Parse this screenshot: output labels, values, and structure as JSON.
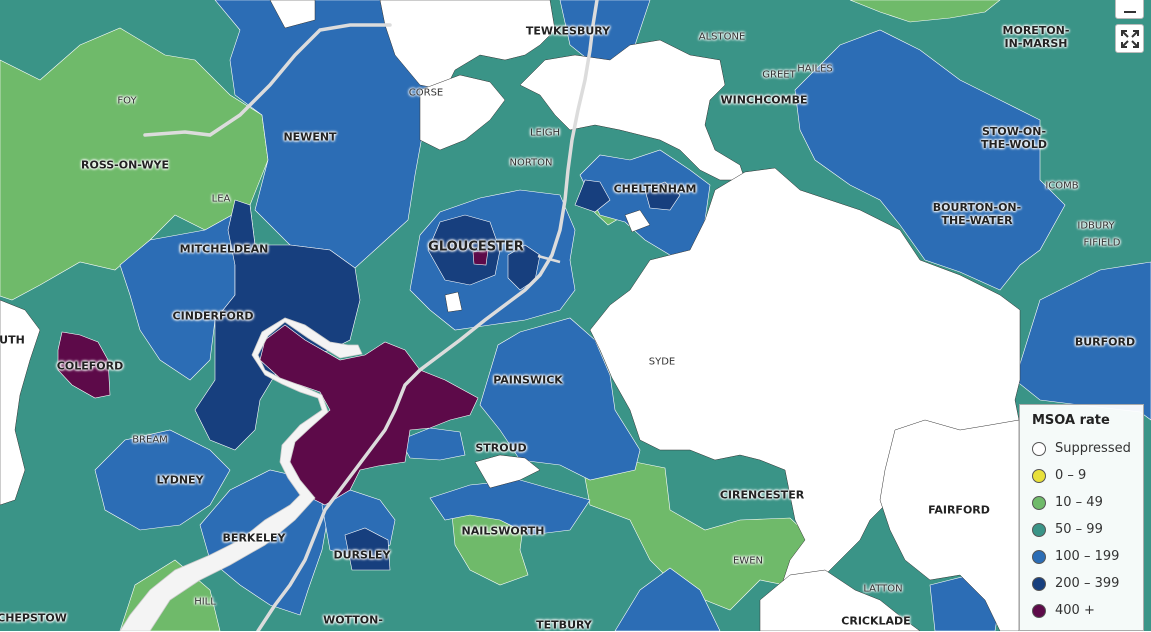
{
  "map": {
    "places": [
      {
        "label": "TEWKESBURY",
        "tier": "normal"
      },
      {
        "label": "ALSTONE",
        "tier": "minor"
      },
      {
        "label": "MORETON-\nIN-MARSH",
        "tier": "normal"
      },
      {
        "label": "FOY",
        "tier": "minor"
      },
      {
        "label": "CORSE",
        "tier": "minor"
      },
      {
        "label": "GREET",
        "tier": "minor"
      },
      {
        "label": "HAILES",
        "tier": "minor"
      },
      {
        "label": "WINCHCOMBE",
        "tier": "normal"
      },
      {
        "label": "NEWENT",
        "tier": "normal"
      },
      {
        "label": "LEIGH",
        "tier": "minor"
      },
      {
        "label": "STOW-ON-\nTHE-WOLD",
        "tier": "normal"
      },
      {
        "label": "ROSS-ON-WYE",
        "tier": "normal"
      },
      {
        "label": "NORTON",
        "tier": "minor"
      },
      {
        "label": "CHELTENHAM",
        "tier": "normal"
      },
      {
        "label": "ICOMB",
        "tier": "minor"
      },
      {
        "label": "LEA",
        "tier": "minor"
      },
      {
        "label": "BOURTON-ON-\nTHE-WATER",
        "tier": "normal"
      },
      {
        "label": "IDBURY",
        "tier": "minor"
      },
      {
        "label": "FIFIELD",
        "tier": "minor"
      },
      {
        "label": "GLOUCESTER",
        "tier": "major"
      },
      {
        "label": "MITCHELDEAN",
        "tier": "normal"
      },
      {
        "label": "CINDERFORD",
        "tier": "normal"
      },
      {
        "label": "UTH",
        "tier": "normal"
      },
      {
        "label": "BURFORD",
        "tier": "normal"
      },
      {
        "label": "SYDE",
        "tier": "minor"
      },
      {
        "label": "COLEFORD",
        "tier": "normal"
      },
      {
        "label": "PAINSWICK",
        "tier": "normal"
      },
      {
        "label": "BREAM",
        "tier": "minor"
      },
      {
        "label": "STROUD",
        "tier": "normal"
      },
      {
        "label": "LYDNEY",
        "tier": "normal"
      },
      {
        "label": "CIRENCESTER",
        "tier": "normal"
      },
      {
        "label": "FAIRFORD",
        "tier": "normal"
      },
      {
        "label": "NAILSWORTH",
        "tier": "normal"
      },
      {
        "label": "BERKELEY",
        "tier": "normal"
      },
      {
        "label": "DURSLEY",
        "tier": "normal"
      },
      {
        "label": "EWEN",
        "tier": "minor"
      },
      {
        "label": "LATTON",
        "tier": "minor"
      },
      {
        "label": "HILL",
        "tier": "minor"
      },
      {
        "label": "CHEPSTOW",
        "tier": "normal"
      },
      {
        "label": "WOTTON-",
        "tier": "normal"
      },
      {
        "label": "TETBURY",
        "tier": "normal"
      },
      {
        "label": "CRICKLADE",
        "tier": "normal"
      }
    ]
  },
  "controls": {
    "zoom_out_icon": "minus-icon",
    "fullscreen_icon": "expand-icon"
  },
  "legend": {
    "title": "MSOA rate",
    "items": [
      {
        "label": "Suppressed",
        "color": "#ffffff"
      },
      {
        "label": "0 – 9",
        "color": "#e8e03a"
      },
      {
        "label": "10 – 49",
        "color": "#6fba6a"
      },
      {
        "label": "50 – 99",
        "color": "#3a9487"
      },
      {
        "label": "100 – 199",
        "color": "#2c6db5"
      },
      {
        "label": "200 – 399",
        "color": "#173f7e"
      },
      {
        "label": "400 +",
        "color": "#5d0a49"
      }
    ]
  },
  "colors": {
    "suppressed": "#ffffff",
    "light_green": "#6fba6a",
    "teal": "#3a9487",
    "mid_blue": "#2c6db5",
    "dark_blue": "#173f7e",
    "purple": "#5d0a49",
    "estuary": "#f4f4f4",
    "road": "#dcdcdc"
  }
}
